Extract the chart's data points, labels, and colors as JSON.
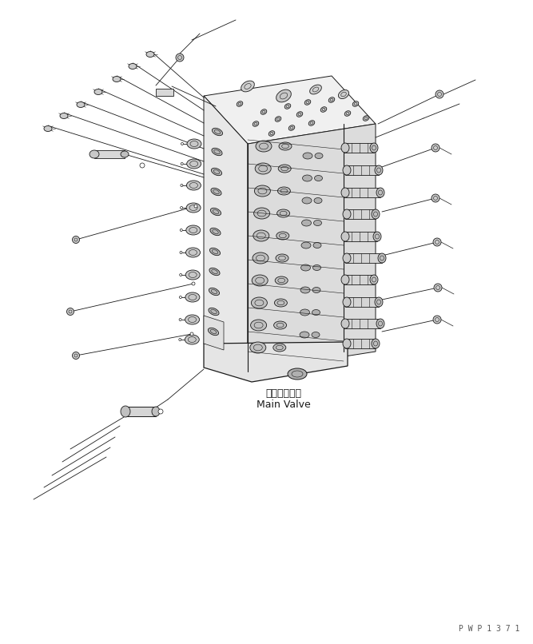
{
  "title": "",
  "bg_color": "#ffffff",
  "line_color": "#1a1a1a",
  "label_japanese": "メインバルブ",
  "label_english": "Main Valve",
  "watermark": "P W P 1 3 7 1",
  "fig_width": 6.67,
  "fig_height": 8.06,
  "dpi": 100
}
